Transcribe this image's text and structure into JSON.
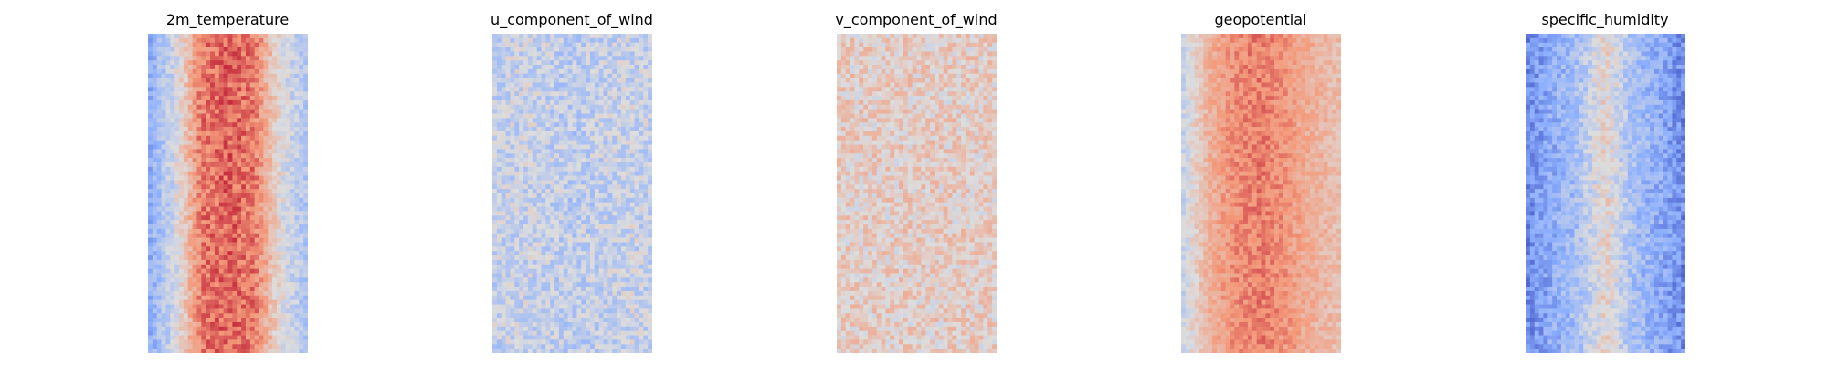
{
  "figure": {
    "layout": "1x5 panels",
    "axes": "off",
    "colormap": "coolwarm",
    "colormap_stops": [
      "#3b4cc0",
      "#8db0fe",
      "#dddddd",
      "#f49a7b",
      "#b40426"
    ]
  },
  "chart_data": [
    {
      "type": "heatmap",
      "title": "2m_temperature",
      "grid": false,
      "value_range": [
        0,
        1
      ],
      "grid_size": [
        36,
        72
      ],
      "profile": [
        0.25,
        0.45,
        0.8,
        0.85,
        0.8,
        0.5,
        0.35
      ],
      "noise": 0.09,
      "seed": 11
    },
    {
      "type": "heatmap",
      "title": "u_component_of_wind",
      "grid": false,
      "value_range": [
        0,
        1
      ],
      "grid_size": [
        36,
        72
      ],
      "profile": [
        0.42,
        0.44,
        0.43,
        0.4,
        0.42,
        0.44,
        0.43
      ],
      "noise": 0.12,
      "seed": 23
    },
    {
      "type": "heatmap",
      "title": "v_component_of_wind",
      "grid": false,
      "value_range": [
        0,
        1
      ],
      "grid_size": [
        36,
        72
      ],
      "profile": [
        0.56,
        0.56,
        0.56,
        0.56,
        0.56,
        0.56,
        0.56
      ],
      "noise": 0.12,
      "seed": 37
    },
    {
      "type": "heatmap",
      "title": "geopotential",
      "grid": false,
      "value_range": [
        0,
        1
      ],
      "grid_size": [
        36,
        72
      ],
      "profile": [
        0.42,
        0.66,
        0.76,
        0.8,
        0.74,
        0.66,
        0.62
      ],
      "noise": 0.07,
      "seed": 41
    },
    {
      "type": "heatmap",
      "title": "specific_humidity",
      "grid": false,
      "value_range": [
        0,
        1
      ],
      "grid_size": [
        36,
        72
      ],
      "profile": [
        0.15,
        0.26,
        0.34,
        0.55,
        0.34,
        0.26,
        0.15
      ],
      "noise": 0.1,
      "seed": 53
    }
  ]
}
